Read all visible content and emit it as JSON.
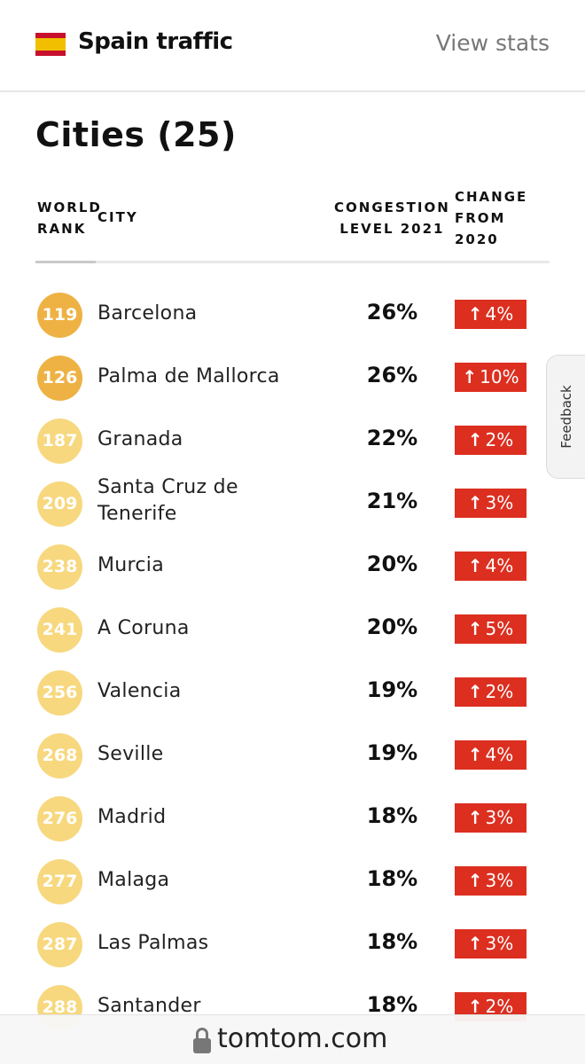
{
  "header": {
    "title": "Spain traffic",
    "view_stats": "View stats",
    "flag_colors": {
      "red": "#c8102e",
      "yellow": "#f1bf00"
    }
  },
  "section": {
    "title": "Cities (25)"
  },
  "columns": {
    "rank": "WORLD RANK",
    "rank_line1": "WORLD",
    "rank_line2": "RANK",
    "city": "CITY",
    "congestion_line1": "CONGESTION",
    "congestion_line2": "LEVEL 2021",
    "change_line1": "CHANGE",
    "change_line2": "FROM",
    "change_line3": "2020"
  },
  "cities": [
    {
      "rank": "119",
      "city": "Barcelona",
      "congestion": "26%",
      "change": "4%",
      "arrow": "↑",
      "badge_tone": "dark"
    },
    {
      "rank": "126",
      "city": "Palma de Mallorca",
      "congestion": "26%",
      "change": "10%",
      "arrow": "↑",
      "badge_tone": "dark"
    },
    {
      "rank": "187",
      "city": "Granada",
      "congestion": "22%",
      "change": "2%",
      "arrow": "↑",
      "badge_tone": "light"
    },
    {
      "rank": "209",
      "city": "Santa Cruz de Tenerife",
      "congestion": "21%",
      "change": "3%",
      "arrow": "↑",
      "badge_tone": "light"
    },
    {
      "rank": "238",
      "city": "Murcia",
      "congestion": "20%",
      "change": "4%",
      "arrow": "↑",
      "badge_tone": "light"
    },
    {
      "rank": "241",
      "city": "A Coruna",
      "congestion": "20%",
      "change": "5%",
      "arrow": "↑",
      "badge_tone": "light"
    },
    {
      "rank": "256",
      "city": "Valencia",
      "congestion": "19%",
      "change": "2%",
      "arrow": "↑",
      "badge_tone": "light"
    },
    {
      "rank": "268",
      "city": "Seville",
      "congestion": "19%",
      "change": "4%",
      "arrow": "↑",
      "badge_tone": "light"
    },
    {
      "rank": "276",
      "city": "Madrid",
      "congestion": "18%",
      "change": "3%",
      "arrow": "↑",
      "badge_tone": "light"
    },
    {
      "rank": "277",
      "city": "Malaga",
      "congestion": "18%",
      "change": "3%",
      "arrow": "↑",
      "badge_tone": "light"
    },
    {
      "rank": "287",
      "city": "Las Palmas",
      "congestion": "18%",
      "change": "3%",
      "arrow": "↑",
      "badge_tone": "light"
    },
    {
      "rank": "288",
      "city": "Santander",
      "congestion": "18%",
      "change": "2%",
      "arrow": "↑",
      "badge_tone": "light"
    }
  ],
  "colors": {
    "badge_dark": "#eeb244",
    "badge_light": "#f7d87e",
    "change_red": "#dc2f20"
  },
  "feedback": {
    "label": "Feedback"
  },
  "urlbar": {
    "url": "tomtom.com",
    "icon": "lock-icon"
  }
}
